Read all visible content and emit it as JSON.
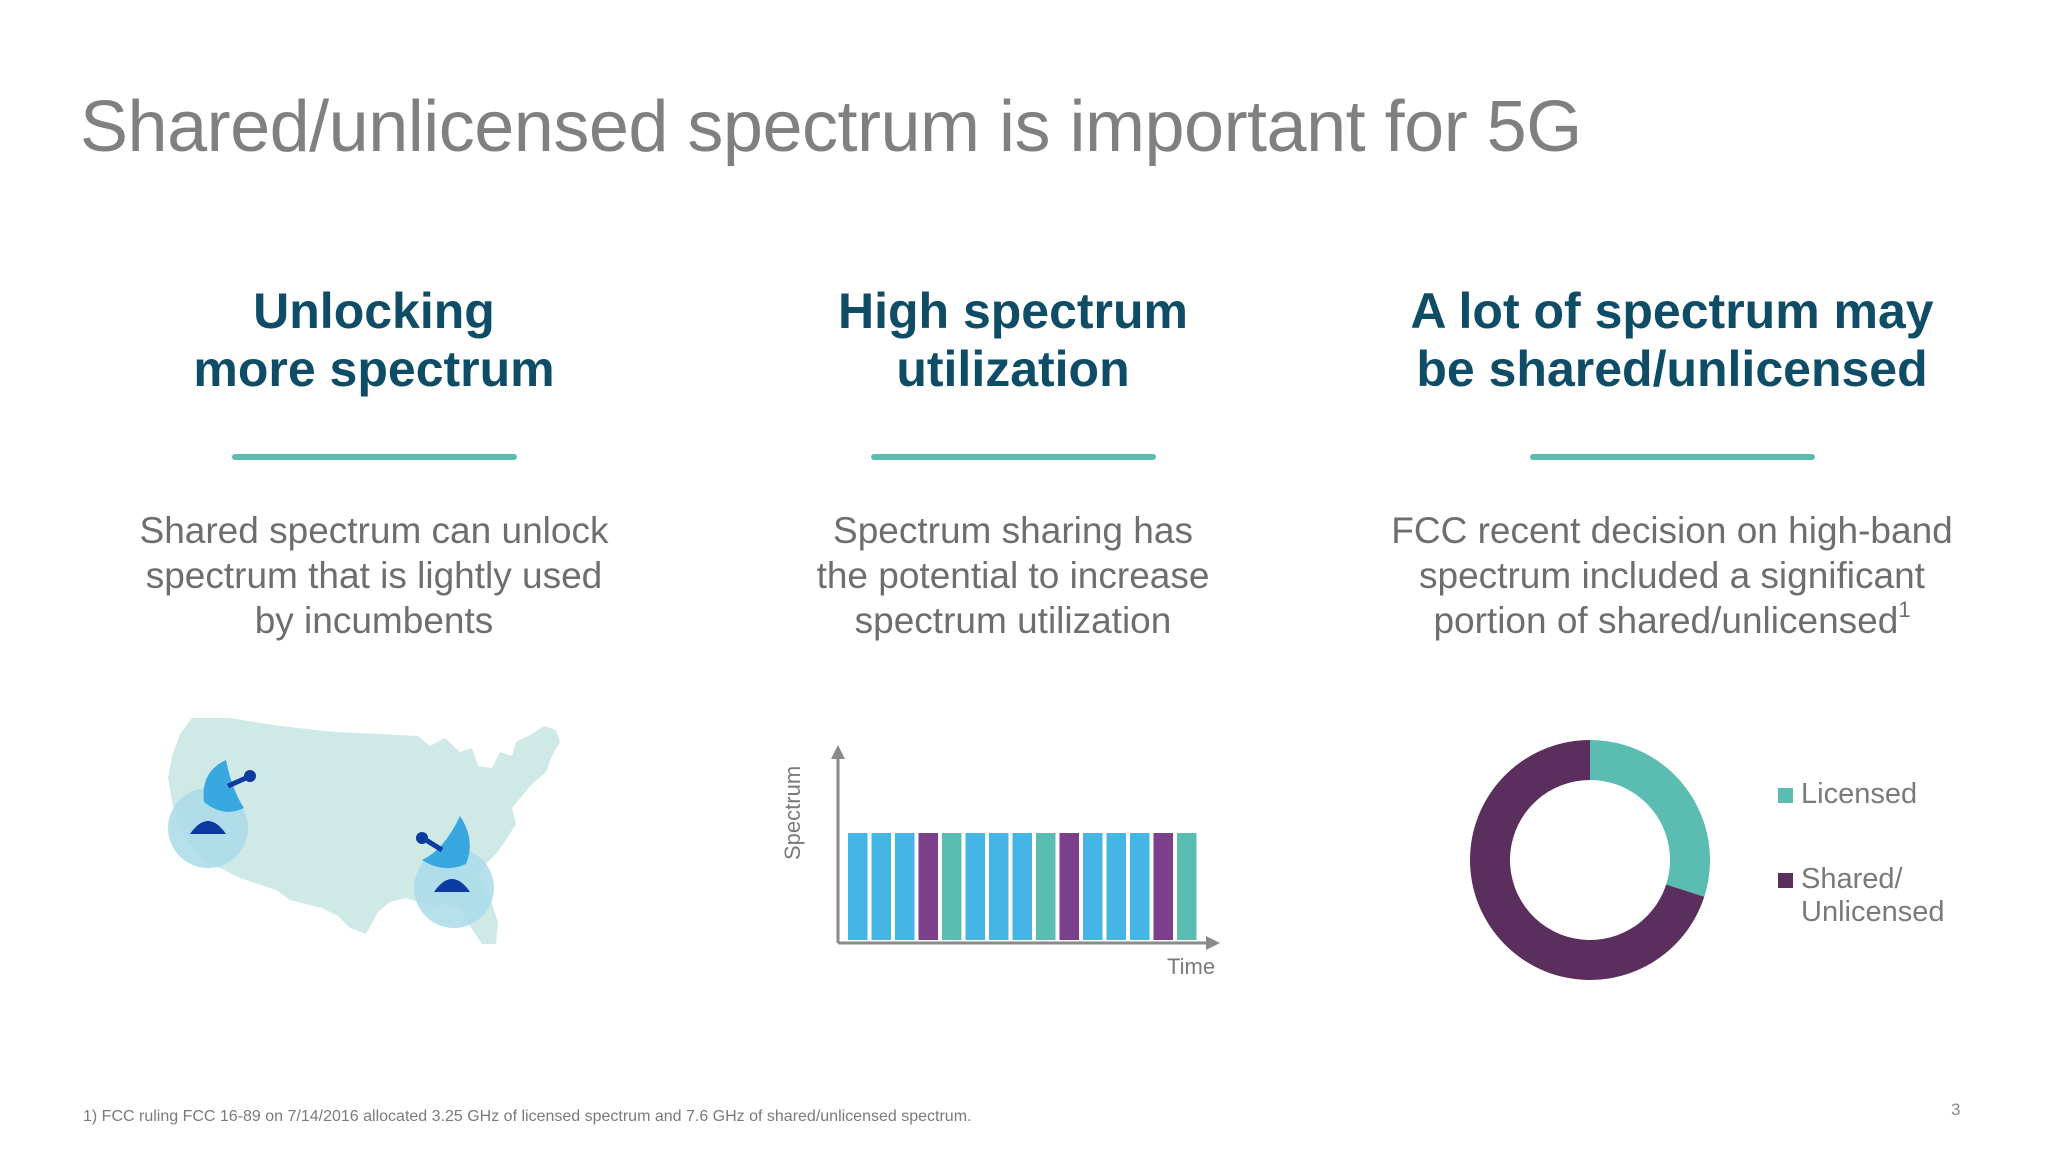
{
  "slide": {
    "title": "Shared/unlicensed spectrum is important for 5G",
    "page_number": "3",
    "footnote": "1) FCC ruling FCC 16-89 on 7/14/2016 allocated 3.25 GHz of licensed spectrum and 7.6 GHz of shared/unlicensed spectrum."
  },
  "columns": [
    {
      "heading_lines": [
        "Unlocking",
        "more spectrum"
      ],
      "body_lines": [
        "Shared spectrum can unlock",
        "spectrum that is lightly used",
        "by incumbents"
      ]
    },
    {
      "heading_lines": [
        "High spectrum",
        "utilization"
      ],
      "body_lines": [
        "Spectrum sharing has",
        "the potential to increase",
        "spectrum utilization"
      ]
    },
    {
      "heading_lines": [
        "A lot of spectrum may",
        "be shared/unlicensed"
      ],
      "body_lines": [
        "FCC recent decision on high-band",
        "spectrum included a significant",
        "portion of shared/unlicensed"
      ],
      "body_superscript": "1"
    }
  ],
  "icons": {
    "map": "us-map-icon",
    "dish": "satellite-dish-icon"
  },
  "colors": {
    "title": "#808080",
    "heading": "#0f4c66",
    "accent_rule": "#5bbcb2",
    "licensed": "#5bbcb2",
    "shared": "#5a2f5e",
    "bar_blue": "#45b5e6",
    "bar_teal": "#5bbcb2",
    "bar_purple": "#7b3f8c",
    "map_fill": "#cfe9e7",
    "dish_light": "#3aa8e0",
    "dish_dark": "#0b3aa0"
  },
  "chart_data": [
    {
      "type": "bar",
      "xlabel": "Time",
      "ylabel": "Spectrum",
      "bars": [
        "blue",
        "blue",
        "blue",
        "purple",
        "teal",
        "blue",
        "blue",
        "blue",
        "teal",
        "purple",
        "blue",
        "blue",
        "blue",
        "purple",
        "teal"
      ]
    },
    {
      "type": "pie",
      "labels": [
        "Licensed",
        "Shared/ Unlicensed"
      ],
      "values": [
        3.25,
        7.6
      ],
      "legend_placement": "right"
    }
  ],
  "legend": [
    {
      "label_lines": [
        "Licensed"
      ]
    },
    {
      "label_lines": [
        "Shared/",
        "Unlicensed"
      ]
    }
  ]
}
